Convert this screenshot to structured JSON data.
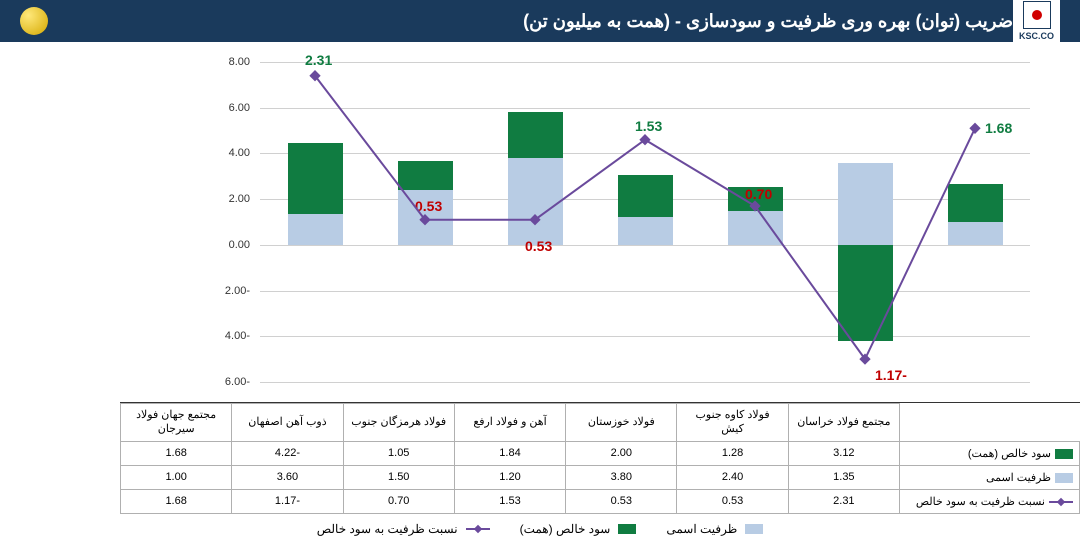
{
  "header": {
    "title": "ضریب (توان) بهره وری ظرفیت و سودسازی - (همت به میلیون تن)",
    "logo_text": "KSC.CO"
  },
  "chart": {
    "type": "bar+line",
    "ylim": [
      -6,
      8
    ],
    "ytick_step": 2,
    "yticks": [
      "8.00",
      "6.00",
      "4.00",
      "2.00",
      "0.00",
      "-2.00",
      "-4.00",
      "-6.00"
    ],
    "grid_color": "#d0d0d0",
    "background_color": "#ffffff",
    "bar_width": 0.5,
    "categories": [
      "مجتمع فولاد خراسان",
      "فولاد کاوه جنوب کیش",
      "فولاد خوزستان",
      "آهن و فولاد ارفع",
      "فولاد هرمزگان جنوب",
      "ذوب آهن اصفهان",
      "مجتمع جهان فولاد سیرجان"
    ],
    "series": {
      "net_profit": {
        "label": "سود خالص (همت)",
        "color": "#107c41",
        "values": [
          3.12,
          1.28,
          2.0,
          1.84,
          1.05,
          -4.22,
          1.68
        ]
      },
      "capacity": {
        "label": "ظرفیت اسمی",
        "color": "#b8cce4",
        "values": [
          1.35,
          2.4,
          3.8,
          1.2,
          1.5,
          3.6,
          1.0
        ]
      },
      "ratio": {
        "label": "نسبت ظرفیت به سود خالص",
        "color": "#6a4a9c",
        "values": [
          2.31,
          0.53,
          0.53,
          1.53,
          0.7,
          -1.17,
          1.68
        ],
        "point_labels": [
          {
            "text": "2.31",
            "color": "#107c41",
            "dx": -10,
            "dy": -24
          },
          {
            "text": "0.53",
            "color": "#c00000",
            "dx": -10,
            "dy": -22
          },
          {
            "text": "0.53",
            "color": "#c00000",
            "dx": -10,
            "dy": 18
          },
          {
            "text": "1.53",
            "color": "#107c41",
            "dx": -10,
            "dy": -22
          },
          {
            "text": "0.70",
            "color": "#c00000",
            "dx": -10,
            "dy": -20
          },
          {
            "text": "-1.17",
            "color": "#c00000",
            "dx": 10,
            "dy": 8
          },
          {
            "text": "1.68",
            "color": "#107c41",
            "dx": 10,
            "dy": -8
          }
        ]
      }
    },
    "line_points_y": [
      7.4,
      1.1,
      1.1,
      4.6,
      1.7,
      -5.0,
      5.1
    ]
  },
  "table": {
    "rows": [
      {
        "key": "net_profit",
        "label": "سود خالص (همت)",
        "swatch": "#107c41",
        "swatch_type": "box"
      },
      {
        "key": "capacity",
        "label": "ظرفیت اسمی",
        "swatch": "#b8cce4",
        "swatch_type": "box"
      },
      {
        "key": "ratio",
        "label": "نسبت ظرفیت به سود خالص",
        "swatch": "#6a4a9c",
        "swatch_type": "line"
      }
    ]
  },
  "legend": [
    {
      "label": "ظرفیت اسمی",
      "swatch": "#b8cce4",
      "type": "box"
    },
    {
      "label": "سود خالص (همت)",
      "swatch": "#107c41",
      "type": "box"
    },
    {
      "label": "نسبت ظرفیت به سود خالص",
      "swatch": "#6a4a9c",
      "type": "line"
    }
  ]
}
